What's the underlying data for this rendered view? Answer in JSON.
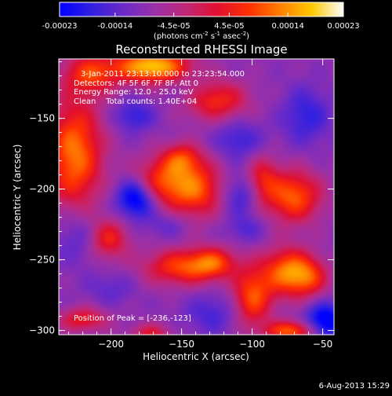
{
  "colorbar": {
    "tick_labels": [
      "-0.00023",
      "-0.00014",
      "-4.5e-05",
      "4.5e-05",
      "0.00014",
      "0.00023"
    ],
    "tick_values": [
      -0.00023,
      -0.00014,
      -4.5e-05,
      4.5e-05,
      0.00014,
      0.00023
    ],
    "range": [
      -0.00023,
      0.00023
    ],
    "unit_parts": [
      "(photons cm",
      "-2",
      " s",
      "-1",
      " asec",
      "-2",
      ")"
    ],
    "colors": [
      "#0000ff",
      "#3020e0",
      "#6a2ac8",
      "#9a30a8",
      "#c02878",
      "#e01030",
      "#ff3000",
      "#ff8000",
      "#ffc800",
      "#ffffff"
    ]
  },
  "header": {
    "title": "Reconstructed RHESSI Image",
    "info_lines": [
      "3-Jan-2011 23:13:10.000 to 23:23:54.000",
      "Detectors: 4F 5F 6F 7F 8F, Att 0",
      "Energy Range: 12.0 - 25.0 keV",
      "Clean    Total counts: 1.40E+04"
    ]
  },
  "chart_data": {
    "type": "heatmap",
    "title": "Reconstructed RHESSI Image",
    "xlabel": "Heliocentric X (arcsec)",
    "ylabel": "Heliocentric Y (arcsec)",
    "xlim": [
      -237,
      -42
    ],
    "ylim": [
      -303,
      -108
    ],
    "x_ticks": [
      -200,
      -150,
      -100,
      -50
    ],
    "y_ticks": [
      -300,
      -250,
      -200,
      -150
    ],
    "x_tick_labels": [
      "−200",
      "−150",
      "−100",
      "−50"
    ],
    "y_tick_labels": [
      "−300",
      "−250",
      "−200",
      "−150"
    ],
    "peak_position": [
      -236,
      -123
    ],
    "peak_label": "Position of Peak = [-236,-123]",
    "colorbar_range": [
      -0.00023,
      0.00023
    ],
    "blobs": [
      {
        "x": -171,
        "y": -113,
        "sx": 18,
        "sy": 8,
        "v": 0.00024
      },
      {
        "x": -214,
        "y": -118,
        "sx": 14,
        "sy": 10,
        "v": 0.00012
      },
      {
        "x": -226,
        "y": -175,
        "sx": 14,
        "sy": 28,
        "v": 0.00018
      },
      {
        "x": -166,
        "y": -195,
        "sx": 14,
        "sy": 12,
        "v": 0.00013
      },
      {
        "x": -140,
        "y": -200,
        "sx": 14,
        "sy": 14,
        "v": 0.00015
      },
      {
        "x": -150,
        "y": -178,
        "sx": 10,
        "sy": 8,
        "v": 0.0001
      },
      {
        "x": -126,
        "y": -137,
        "sx": 16,
        "sy": 10,
        "v": 0.00012
      },
      {
        "x": -71,
        "y": -205,
        "sx": 14,
        "sy": 13,
        "v": 0.00016
      },
      {
        "x": -93,
        "y": -193,
        "sx": 8,
        "sy": 12,
        "v": 9e-05
      },
      {
        "x": -202,
        "y": -235,
        "sx": 10,
        "sy": 10,
        "v": 0.00011
      },
      {
        "x": -152,
        "y": -255,
        "sx": 18,
        "sy": 9,
        "v": 0.00013
      },
      {
        "x": -128,
        "y": -252,
        "sx": 12,
        "sy": 8,
        "v": 0.00012
      },
      {
        "x": -76,
        "y": -258,
        "sx": 12,
        "sy": 12,
        "v": 0.00016
      },
      {
        "x": -100,
        "y": -276,
        "sx": 10,
        "sy": 15,
        "v": 0.00015
      },
      {
        "x": -60,
        "y": -262,
        "sx": 10,
        "sy": 10,
        "v": 0.00011
      },
      {
        "x": -73,
        "y": -300,
        "sx": 12,
        "sy": 5,
        "v": 0.00016
      },
      {
        "x": -220,
        "y": -292,
        "sx": 12,
        "sy": 6,
        "v": 0.0001
      },
      {
        "x": -172,
        "y": -302,
        "sx": 10,
        "sy": 5,
        "v": 8e-05
      },
      {
        "x": -182,
        "y": -206,
        "sx": 10,
        "sy": 10,
        "v": -0.00022
      },
      {
        "x": -184,
        "y": -148,
        "sx": 10,
        "sy": 8,
        "v": -0.00012
      },
      {
        "x": -110,
        "y": -165,
        "sx": 12,
        "sy": 10,
        "v": -0.00011
      },
      {
        "x": -108,
        "y": -204,
        "sx": 10,
        "sy": 10,
        "v": -0.00012
      },
      {
        "x": -62,
        "y": -148,
        "sx": 12,
        "sy": 14,
        "v": -0.00012
      },
      {
        "x": -224,
        "y": -233,
        "sx": 12,
        "sy": 14,
        "v": -0.0001
      },
      {
        "x": -160,
        "y": -225,
        "sx": 10,
        "sy": 7,
        "v": -8e-05
      },
      {
        "x": -105,
        "y": -228,
        "sx": 10,
        "sy": 7,
        "v": -9e-05
      },
      {
        "x": -128,
        "y": -288,
        "sx": 14,
        "sy": 10,
        "v": -0.0001
      },
      {
        "x": -48,
        "y": -293,
        "sx": 10,
        "sy": 9,
        "v": -0.0002
      },
      {
        "x": -145,
        "y": -130,
        "sx": 10,
        "sy": 8,
        "v": -6e-05
      },
      {
        "x": -200,
        "y": -270,
        "sx": 12,
        "sy": 8,
        "v": -8e-05
      }
    ]
  },
  "footer": {
    "timestamp": "6-Aug-2013 15:29"
  }
}
